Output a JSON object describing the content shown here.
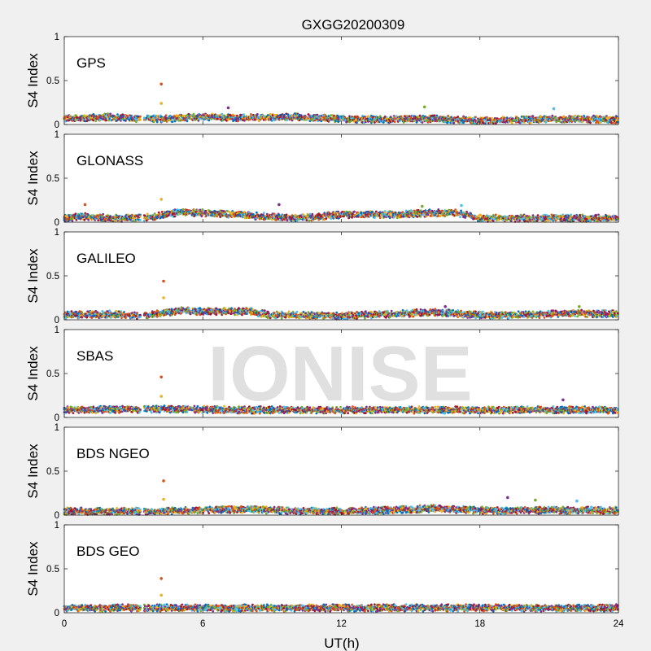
{
  "figure": {
    "title": "GXGG20200309",
    "watermark": "IONISE",
    "xlabel": "UT(h)",
    "ylabel": "S4 Index",
    "xlim": [
      0,
      24
    ],
    "ylim": [
      0,
      1
    ],
    "xticks": [
      "0",
      "6",
      "12",
      "18",
      "24"
    ],
    "yticks": [
      "0",
      "0.5",
      "1"
    ]
  },
  "colors": [
    "#0072bd",
    "#d95319",
    "#edb120",
    "#7e2f8e",
    "#77ac30",
    "#4dbeee",
    "#a2142f"
  ],
  "chart_data": [
    {
      "type": "scatter",
      "label": "GPS",
      "xlim": [
        0,
        24
      ],
      "ylim": [
        0,
        1
      ],
      "data_gap": [
        3.3,
        3.45
      ],
      "baseline": [
        [
          0,
          0.08
        ],
        [
          1,
          0.09
        ],
        [
          2,
          0.1
        ],
        [
          3,
          0.08
        ],
        [
          4,
          0.08
        ],
        [
          6,
          0.1
        ],
        [
          8,
          0.09
        ],
        [
          10,
          0.1
        ],
        [
          12,
          0.08
        ],
        [
          14,
          0.07
        ],
        [
          16,
          0.08
        ],
        [
          18,
          0.06
        ],
        [
          20,
          0.07
        ],
        [
          22,
          0.08
        ],
        [
          24,
          0.07
        ]
      ],
      "spikes": [
        {
          "x": 4.2,
          "y": 0.46
        },
        {
          "x": 4.2,
          "y": 0.24
        },
        {
          "x": 7.1,
          "y": 0.19
        },
        {
          "x": 15.6,
          "y": 0.2
        },
        {
          "x": 21.2,
          "y": 0.18
        }
      ]
    },
    {
      "type": "scatter",
      "label": "GLONASS",
      "xlim": [
        0,
        24
      ],
      "ylim": [
        0,
        1
      ],
      "data_gap": [
        3.3,
        3.45
      ],
      "baseline": [
        [
          0,
          0.06
        ],
        [
          1,
          0.08
        ],
        [
          2,
          0.06
        ],
        [
          3,
          0.06
        ],
        [
          4,
          0.08
        ],
        [
          5,
          0.13
        ],
        [
          6,
          0.12
        ],
        [
          8,
          0.09
        ],
        [
          10,
          0.06
        ],
        [
          12,
          0.1
        ],
        [
          14,
          0.1
        ],
        [
          16,
          0.12
        ],
        [
          17,
          0.12
        ],
        [
          18,
          0.06
        ],
        [
          20,
          0.06
        ],
        [
          22,
          0.06
        ],
        [
          24,
          0.06
        ]
      ],
      "spikes": [
        {
          "x": 0.9,
          "y": 0.2
        },
        {
          "x": 4.2,
          "y": 0.26
        },
        {
          "x": 9.3,
          "y": 0.2
        },
        {
          "x": 15.5,
          "y": 0.18
        },
        {
          "x": 17.2,
          "y": 0.19
        }
      ]
    },
    {
      "type": "scatter",
      "label": "GALILEO",
      "xlim": [
        0,
        24
      ],
      "ylim": [
        0,
        1
      ],
      "data_gap": [
        3.3,
        3.45
      ],
      "baseline": [
        [
          0,
          0.07
        ],
        [
          2,
          0.08
        ],
        [
          3,
          0.06
        ],
        [
          4,
          0.08
        ],
        [
          5,
          0.12
        ],
        [
          6,
          0.11
        ],
        [
          8,
          0.11
        ],
        [
          9,
          0.07
        ],
        [
          10,
          0.07
        ],
        [
          12,
          0.06
        ],
        [
          14,
          0.08
        ],
        [
          16,
          0.1
        ],
        [
          18,
          0.07
        ],
        [
          20,
          0.07
        ],
        [
          22,
          0.09
        ],
        [
          24,
          0.08
        ]
      ],
      "spikes": [
        {
          "x": 4.3,
          "y": 0.44
        },
        {
          "x": 4.3,
          "y": 0.25
        },
        {
          "x": 16.5,
          "y": 0.15
        },
        {
          "x": 22.3,
          "y": 0.15
        }
      ]
    },
    {
      "type": "scatter",
      "label": "SBAS",
      "xlim": [
        0,
        24
      ],
      "ylim": [
        0,
        1
      ],
      "data_gap": [
        3.3,
        3.45
      ],
      "baseline": [
        [
          0,
          0.1
        ],
        [
          4,
          0.11
        ],
        [
          8,
          0.1
        ],
        [
          12,
          0.1
        ],
        [
          16,
          0.1
        ],
        [
          20,
          0.1
        ],
        [
          24,
          0.1
        ]
      ],
      "spikes": [
        {
          "x": 4.2,
          "y": 0.46
        },
        {
          "x": 4.2,
          "y": 0.24
        },
        {
          "x": 21.6,
          "y": 0.2
        }
      ]
    },
    {
      "type": "scatter",
      "label": "BDS NGEO",
      "xlim": [
        0,
        24
      ],
      "ylim": [
        0,
        1
      ],
      "data_gap": [
        3.3,
        3.45
      ],
      "baseline": [
        [
          0,
          0.06
        ],
        [
          2,
          0.06
        ],
        [
          3,
          0.06
        ],
        [
          4,
          0.06
        ],
        [
          6,
          0.07
        ],
        [
          8,
          0.08
        ],
        [
          10,
          0.06
        ],
        [
          12,
          0.06
        ],
        [
          14,
          0.07
        ],
        [
          16,
          0.09
        ],
        [
          18,
          0.07
        ],
        [
          20,
          0.07
        ],
        [
          22,
          0.07
        ],
        [
          24,
          0.07
        ]
      ],
      "spikes": [
        {
          "x": 4.3,
          "y": 0.39
        },
        {
          "x": 4.3,
          "y": 0.18
        },
        {
          "x": 19.2,
          "y": 0.2
        },
        {
          "x": 20.4,
          "y": 0.17
        },
        {
          "x": 22.2,
          "y": 0.16
        }
      ]
    },
    {
      "type": "scatter",
      "label": "BDS GEO",
      "xlim": [
        0,
        24
      ],
      "ylim": [
        0,
        1
      ],
      "data_gap": [
        3.3,
        3.45
      ],
      "baseline": [
        [
          0,
          0.07
        ],
        [
          24,
          0.07
        ]
      ],
      "spikes": [
        {
          "x": 4.2,
          "y": 0.39
        },
        {
          "x": 4.2,
          "y": 0.2
        }
      ]
    }
  ]
}
